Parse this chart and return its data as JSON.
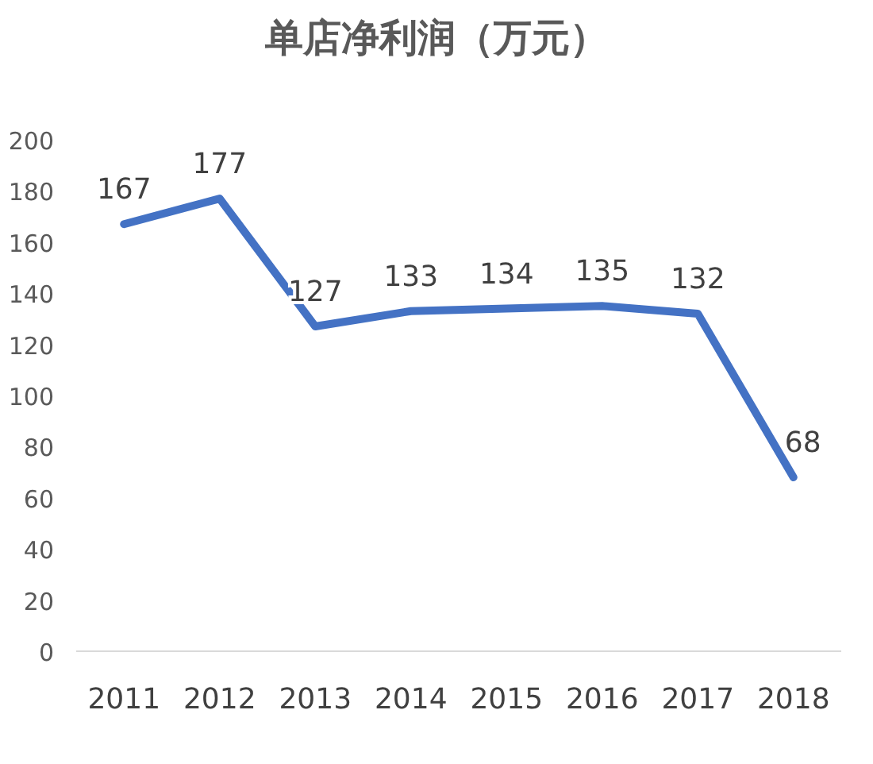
{
  "chart_data": {
    "type": "line",
    "title": "单店净利润（万元）",
    "categories": [
      "2011",
      "2012",
      "2013",
      "2014",
      "2015",
      "2016",
      "2017",
      "2018"
    ],
    "values": [
      167,
      177,
      127,
      133,
      134,
      135,
      132,
      68
    ],
    "color": "#4472c4",
    "ylim": [
      0,
      200
    ],
    "yticks": [
      0,
      20,
      40,
      60,
      80,
      100,
      120,
      140,
      160,
      180,
      200
    ],
    "data_labels": true
  }
}
